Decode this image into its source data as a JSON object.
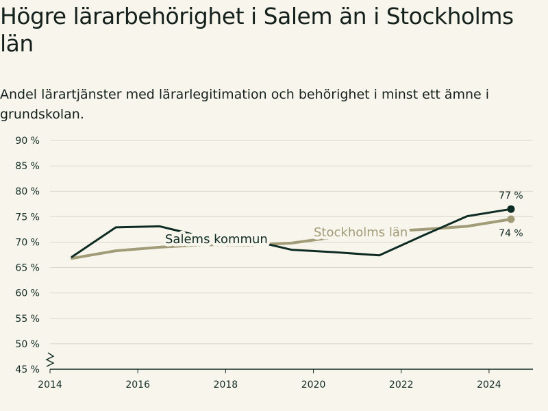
{
  "title": "Högre lärarbehörighet i Salem än i Stockholms län",
  "subtitle": "Andel lärartjänster med lärarlegitimation och behörighet i minst ett ämne i grundskolan.",
  "colors": {
    "salem": "#0d2b23",
    "stockholm": "#a19b77",
    "grid": "#dcd8cc",
    "axis": "#0f2a22",
    "background": "#f8f5ec"
  },
  "chart_data": {
    "type": "line",
    "xlim": [
      2014,
      2025
    ],
    "ylim": [
      45,
      90
    ],
    "x_ticks": [
      2014,
      2016,
      2018,
      2020,
      2022,
      2024
    ],
    "y_ticks": [
      {
        "value": 45,
        "label": "45 %"
      },
      {
        "value": 50,
        "label": "50 %"
      },
      {
        "value": 55,
        "label": "55 %"
      },
      {
        "value": 60,
        "label": "60 %"
      },
      {
        "value": 65,
        "label": "65 %"
      },
      {
        "value": 70,
        "label": "70 %"
      },
      {
        "value": 75,
        "label": "75 %"
      },
      {
        "value": 80,
        "label": "80 %"
      },
      {
        "value": 85,
        "label": "85 %"
      },
      {
        "value": 90,
        "label": "90 %"
      }
    ],
    "axis_break": true,
    "grid": true,
    "series": [
      {
        "key": "stockholm",
        "name": "Stockholms län",
        "x": [
          2014.5,
          2015.5,
          2016.5,
          2017.5,
          2018.5,
          2019.5,
          2020.5,
          2021.5,
          2022.5,
          2023.5,
          2024.5
        ],
        "values": [
          66.8,
          68.3,
          69.0,
          69.5,
          69.4,
          69.8,
          71.0,
          72.0,
          72.5,
          73.1,
          74.5
        ],
        "end_label": "74 %"
      },
      {
        "key": "salem",
        "name": "Salems kommun",
        "x": [
          2014.5,
          2015.5,
          2016.5,
          2017.5,
          2018.5,
          2019.5,
          2020.5,
          2021.5,
          2022.5,
          2023.5,
          2024.5
        ],
        "values": [
          67.1,
          72.9,
          73.1,
          71.0,
          70.5,
          68.5,
          68.0,
          67.4,
          71.3,
          75.1,
          76.5
        ],
        "end_label": "77 %"
      }
    ]
  }
}
